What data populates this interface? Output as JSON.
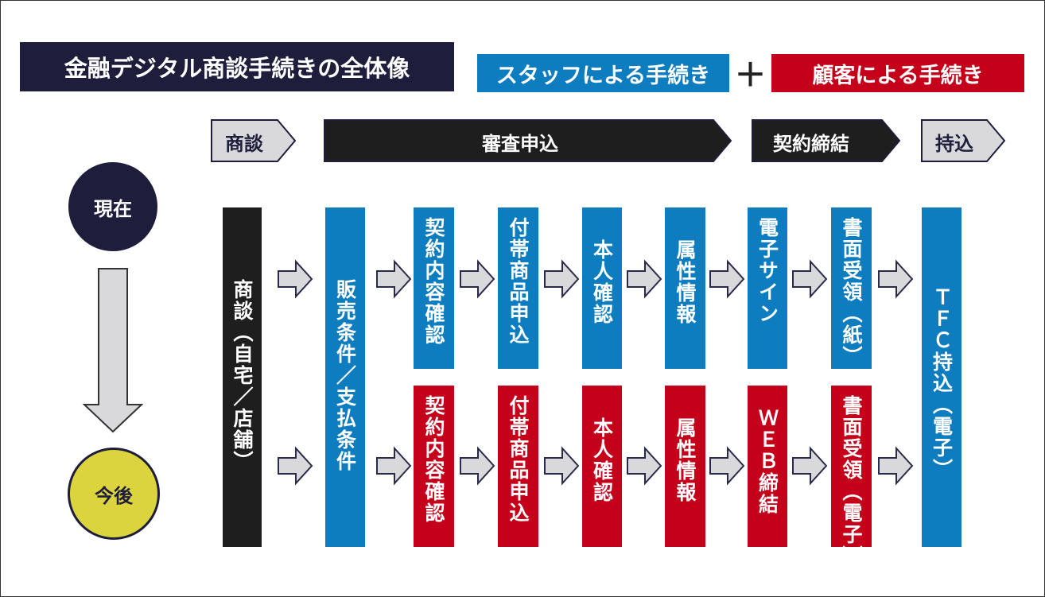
{
  "title": "金融デジタル商談手続きの全体像",
  "legend": {
    "staff": "スタッフによる手続き",
    "plus": "＋",
    "customer": "顧客による手続き"
  },
  "colors": {
    "staff": "#0e7dc0",
    "customer": "#c4001a",
    "navy": "#1e1e3c",
    "future": "#dcd43c",
    "arrow_fill": "#d9d9dc"
  },
  "phases": [
    "商談",
    "審査申込",
    "契約締結",
    "持込"
  ],
  "states": {
    "current": "現在",
    "future": "今後"
  },
  "steps": {
    "shodan": "商談（自宅／店舗）",
    "hanbai": "販売条件／支払条件",
    "tfc": "ＴＦＣ持込（電子）"
  },
  "current_row": [
    "契約内容確認",
    "付帯商品申込",
    "本人確認",
    "属性情報",
    "電子サイン",
    "書面受領（紙）"
  ],
  "future_row": [
    "契約内容確認",
    "付帯商品申込",
    "本人確認",
    "属性情報",
    "ＷＥＢ締結",
    "書面受領（電子）"
  ]
}
